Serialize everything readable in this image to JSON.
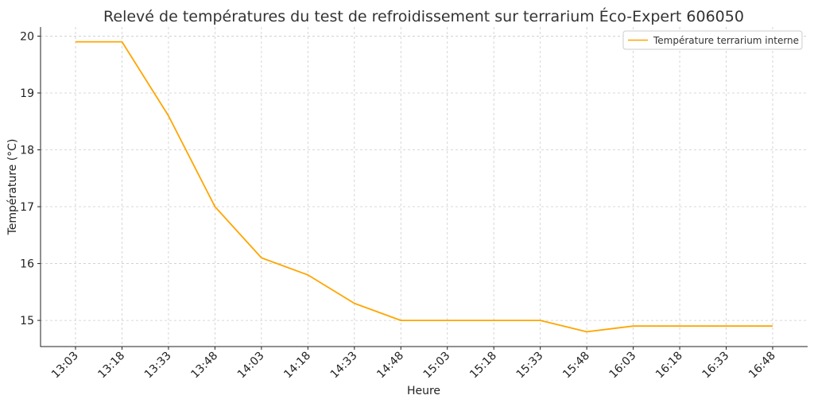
{
  "chart_data": {
    "type": "line",
    "title": "Relevé de températures du test de refroidissement sur terrarium Éco-Expert 606050",
    "xlabel": "Heure",
    "ylabel": "Température (°C)",
    "categories": [
      "13:03",
      "13:18",
      "13:33",
      "13:48",
      "14:03",
      "14:18",
      "14:33",
      "14:48",
      "15:03",
      "15:18",
      "15:33",
      "15:48",
      "16:03",
      "16:18",
      "16:33",
      "16:48"
    ],
    "series": [
      {
        "name": "Température terrarium interne",
        "color": "#FFA500",
        "values": [
          19.9,
          19.9,
          18.6,
          17.0,
          16.1,
          15.8,
          15.3,
          15.0,
          15.0,
          15.0,
          15.0,
          14.8,
          14.9,
          14.9,
          14.9,
          14.9
        ]
      }
    ],
    "ylim": [
      14.54,
      20.16
    ],
    "yticks": [
      15,
      16,
      17,
      18,
      19,
      20
    ],
    "grid": true,
    "legend_position": "top-right"
  }
}
